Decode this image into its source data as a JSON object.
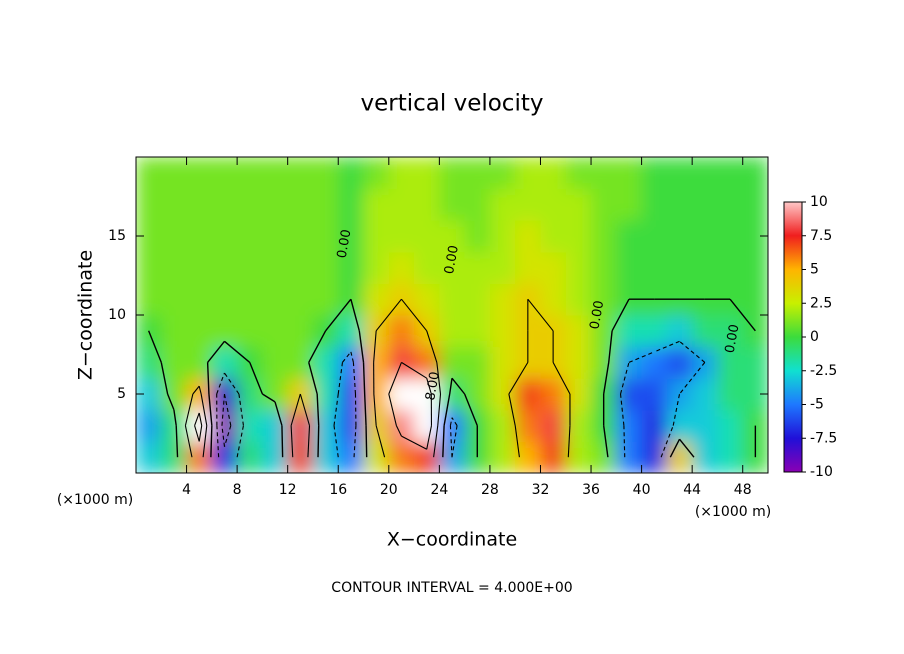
{
  "chart_data": {
    "type": "contour",
    "title": "vertical velocity",
    "x_label": "X−coordinate",
    "y_label": "Z−coordinate",
    "x_unit_left": "(×1000 m)",
    "x_unit_right": "(×1000 m)",
    "footnote": "CONTOUR INTERVAL = 4.000E+00",
    "xlim": [
      0,
      50
    ],
    "ylim": [
      0,
      20
    ],
    "xticks": [
      4,
      8,
      12,
      16,
      20,
      24,
      28,
      32,
      36,
      40,
      44,
      48
    ],
    "yticks": [
      5,
      10,
      15
    ],
    "x": [
      1,
      3,
      5,
      7,
      9,
      11,
      13,
      15,
      17,
      19,
      21,
      23,
      25,
      27,
      29,
      31,
      33,
      35,
      37,
      39,
      41,
      43,
      45,
      47,
      49
    ],
    "y": [
      1,
      3,
      5,
      7,
      9,
      11,
      13,
      15,
      17,
      19
    ],
    "z": [
      [
        -3,
        -1,
        6,
        -7,
        -1,
        -3,
        7,
        -3,
        -5,
        3,
        6,
        7,
        -4,
        0,
        2,
        5,
        7,
        2,
        1,
        -5,
        -7,
        4,
        -3,
        -2,
        0
      ],
      [
        -4,
        -1,
        10,
        -10,
        -2,
        -3,
        8,
        -3,
        -6,
        4,
        9,
        11,
        -5,
        0,
        2,
        6,
        8,
        2,
        0,
        -5,
        -7,
        -3,
        -3,
        -2,
        0
      ],
      [
        -3,
        1,
        5,
        -8,
        -1,
        1,
        4,
        -2,
        -6,
        5,
        11,
        10,
        -1,
        1,
        3,
        7,
        6,
        3,
        0,
        -6,
        -6,
        -4,
        -3,
        -1,
        -1
      ],
      [
        -1,
        1,
        1,
        -2,
        0,
        1,
        1,
        -2,
        -5,
        5,
        8,
        6,
        1,
        1,
        3,
        4,
        4,
        3,
        1,
        -4,
        -5,
        -6,
        -4,
        -1,
        -1
      ],
      [
        0,
        1,
        1,
        1,
        1,
        1,
        1,
        0,
        -2,
        4,
        6,
        4,
        2,
        2,
        3,
        4,
        4,
        3,
        1,
        -2,
        -2,
        -3,
        -1,
        -1,
        0
      ],
      [
        1,
        1,
        1,
        1,
        1,
        1,
        1,
        1,
        0,
        3,
        4,
        3,
        2,
        2,
        3,
        4,
        3,
        2,
        1,
        0,
        0,
        0,
        0,
        0,
        0
      ],
      [
        1,
        1,
        1,
        1,
        1,
        1,
        1,
        1,
        0,
        2,
        3,
        2,
        2,
        2,
        2,
        3,
        3,
        2,
        1,
        0,
        0,
        0,
        0,
        0,
        0
      ],
      [
        1,
        1,
        1,
        1,
        1,
        1,
        1,
        1,
        0,
        2,
        2,
        2,
        2,
        1,
        2,
        3,
        2,
        2,
        1,
        0,
        0,
        0,
        0,
        0,
        0
      ],
      [
        1,
        1,
        1,
        1,
        1,
        1,
        1,
        1,
        0,
        2,
        2,
        2,
        1,
        1,
        2,
        2,
        2,
        2,
        1,
        1,
        0,
        0,
        0,
        0,
        0
      ],
      [
        1,
        1,
        1,
        1,
        1,
        1,
        1,
        1,
        0,
        1,
        2,
        2,
        1,
        1,
        1,
        2,
        2,
        1,
        1,
        1,
        0,
        0,
        0,
        0,
        0
      ]
    ],
    "contour_levels": [
      -8,
      -4,
      0,
      4,
      8
    ],
    "contour_labels": [
      {
        "text": "0.00",
        "x": 16.5,
        "y": 14.5
      },
      {
        "text": "0.00",
        "x": 25,
        "y": 13.5
      },
      {
        "text": "0.00",
        "x": 36.5,
        "y": 10
      },
      {
        "text": "8.00",
        "x": 23.5,
        "y": 5.5
      },
      {
        "text": "0.00",
        "x": 47.2,
        "y": 8.5
      }
    ],
    "colormap": [
      {
        "value": -10,
        "color": "#8a00b4"
      },
      {
        "value": -7.5,
        "color": "#2010d8"
      },
      {
        "value": -5,
        "color": "#1e78ff"
      },
      {
        "value": -2.5,
        "color": "#10e0d0"
      },
      {
        "value": 0,
        "color": "#3cdc3c"
      },
      {
        "value": 2.5,
        "color": "#c8f000"
      },
      {
        "value": 5,
        "color": "#ffb400"
      },
      {
        "value": 7.5,
        "color": "#f01e1e"
      },
      {
        "value": 10,
        "color": "#ffc8c8"
      }
    ],
    "colorbar_lim": [
      -10,
      10
    ],
    "colorbar_ticks": [
      10,
      7.5,
      5,
      2.5,
      0,
      -2.5,
      -5,
      -7.5,
      -10
    ]
  }
}
